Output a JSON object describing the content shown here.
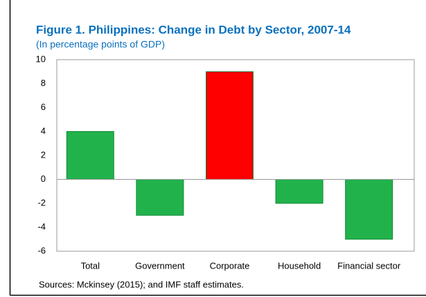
{
  "chart_data": {
    "type": "bar",
    "title": "Figure 1. Philippines: Change in Debt by Sector, 2007-14",
    "subtitle": "(In percentage points of GDP)",
    "source": "Sources: Mckinsey (2015); and IMF staff estimates.",
    "categories": [
      "Total",
      "Government",
      "Corporate",
      "Household",
      "Financial sector"
    ],
    "values": [
      4,
      -3,
      9,
      -2,
      -5
    ],
    "colors": [
      "#22b24c",
      "#22b24c",
      "#ff0000",
      "#22b24c",
      "#22b24c"
    ],
    "ylim": [
      -6,
      10
    ],
    "yticks": [
      -6,
      -4,
      -2,
      0,
      2,
      4,
      6,
      8,
      10
    ],
    "grid": false
  }
}
